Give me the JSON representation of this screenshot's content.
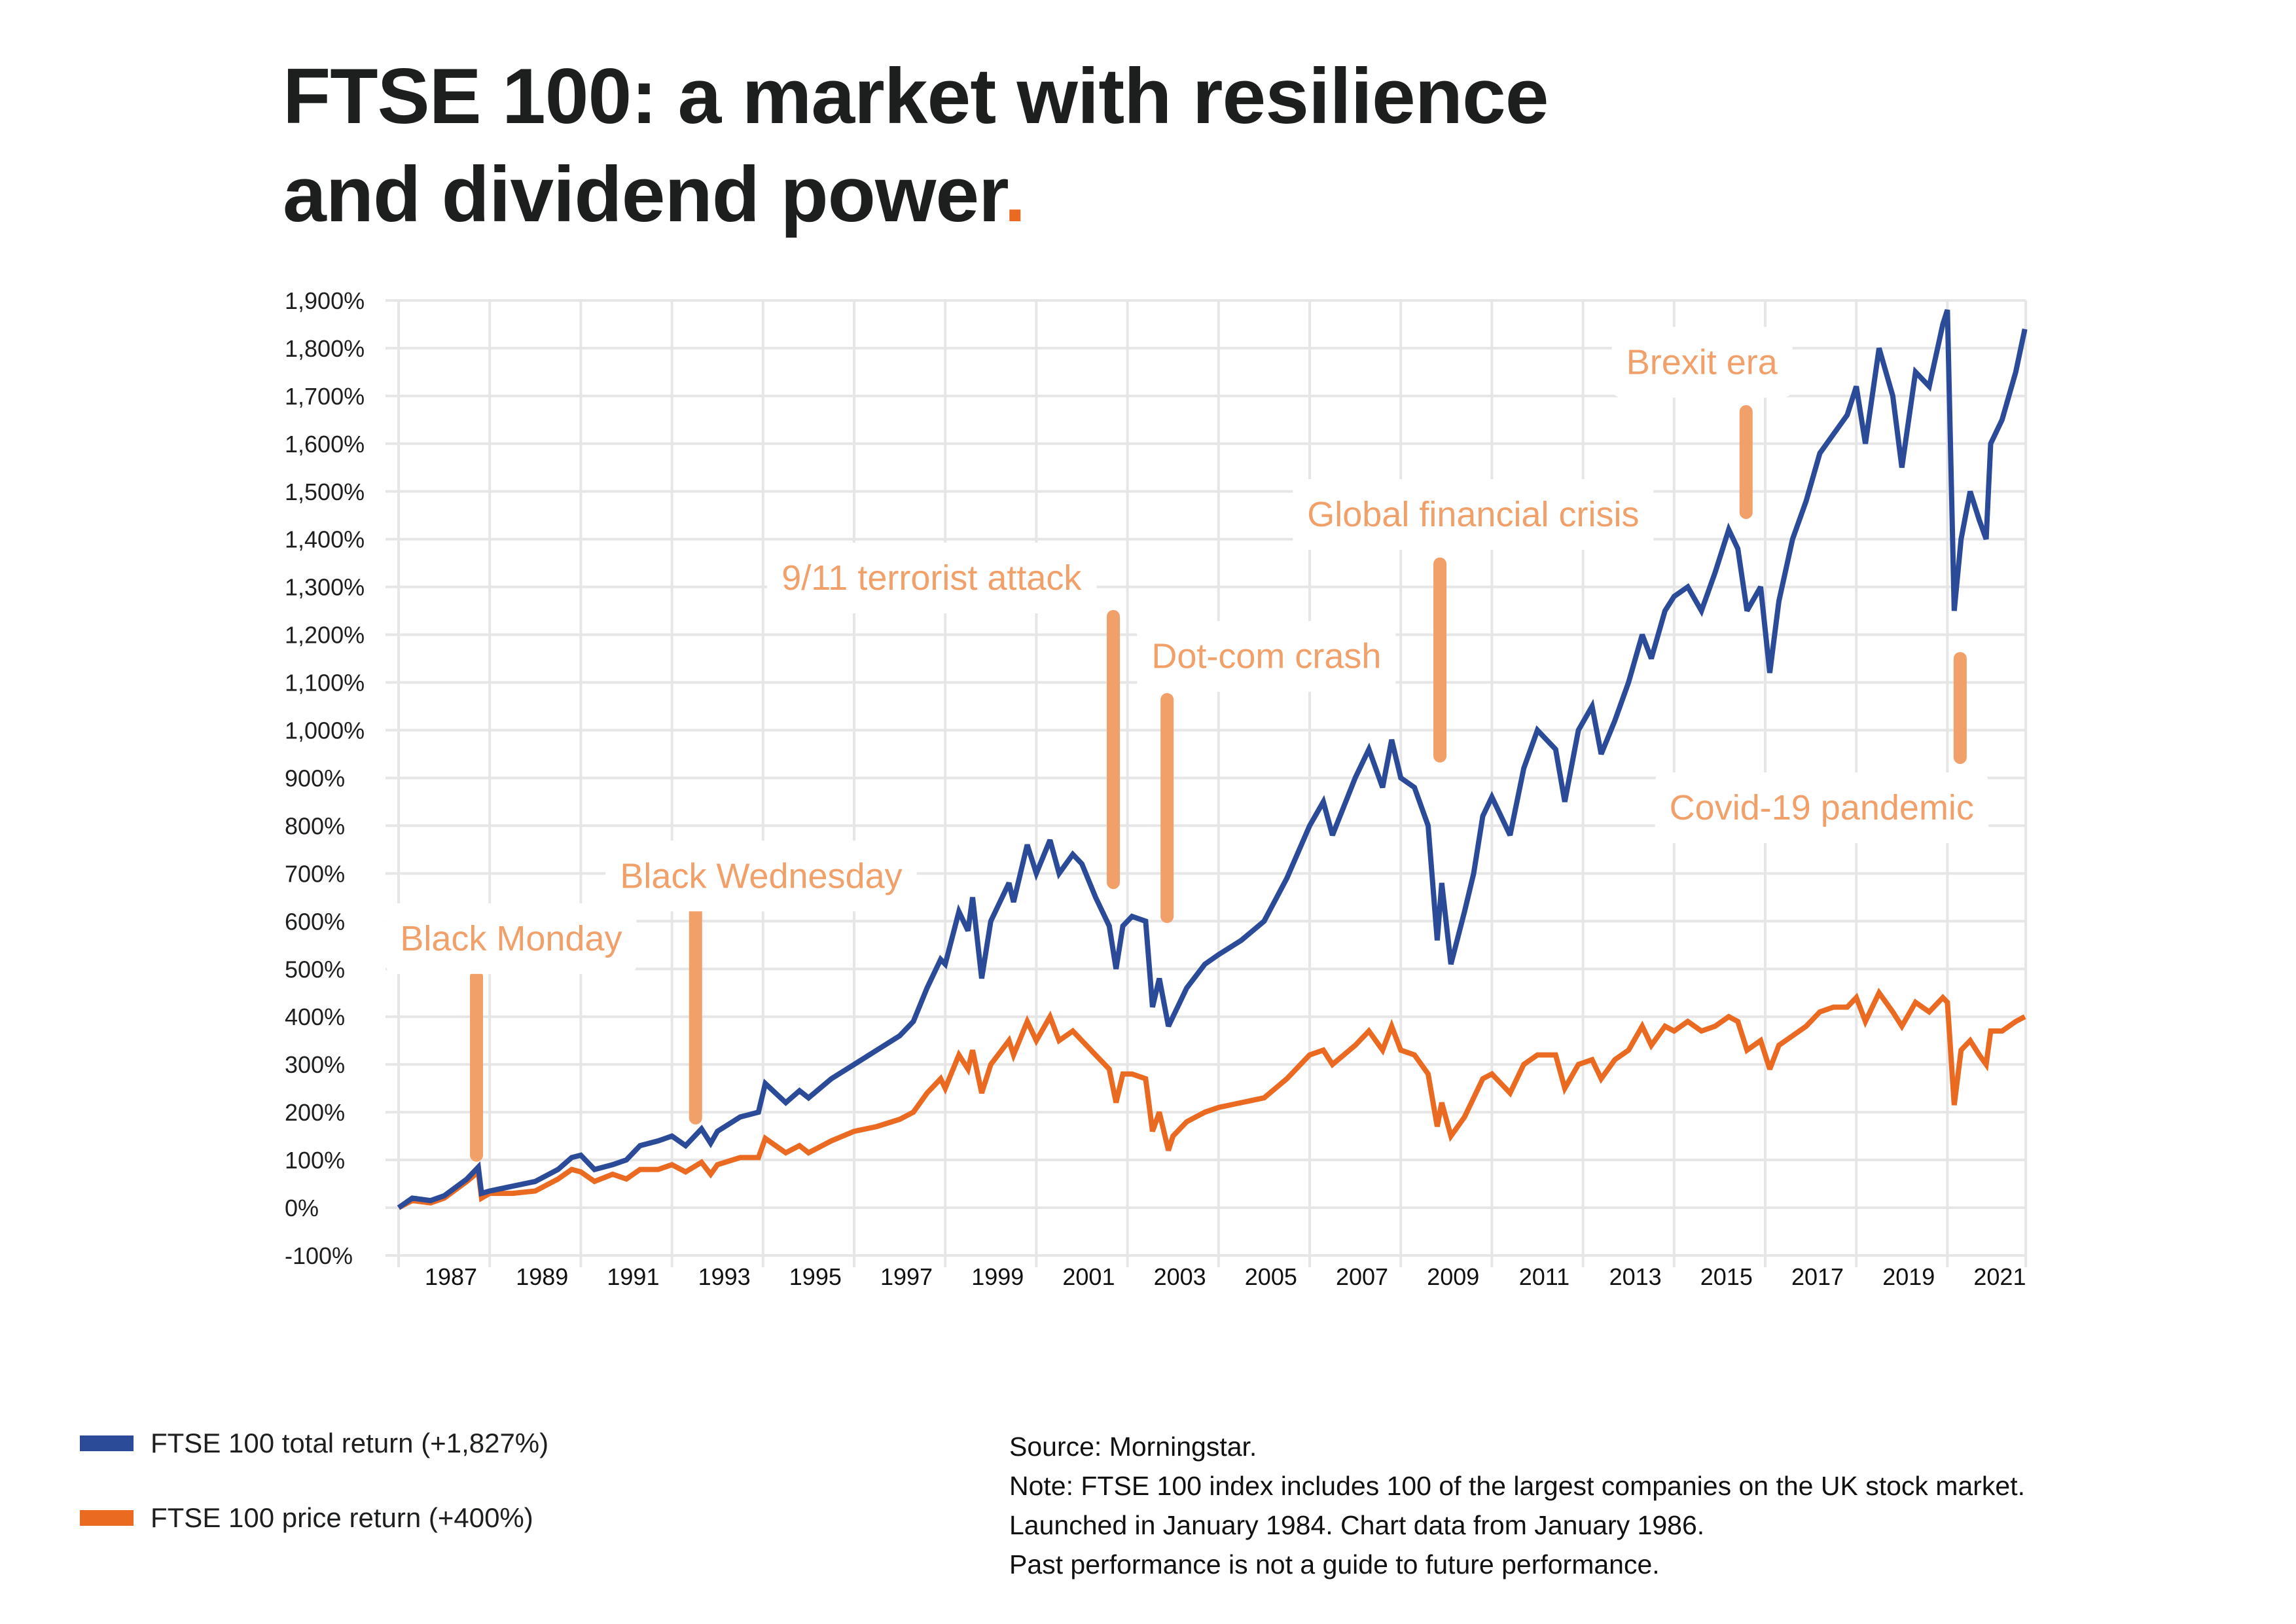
{
  "header": {
    "title_line1": "FTSE 100: a market with resilience",
    "title_line2": "and dividend power",
    "title_dot": ".",
    "accent_color": "#ea6a21"
  },
  "legend": [
    {
      "label": "FTSE 100 total return (+1,827%)",
      "color": "#2b4a98"
    },
    {
      "label": "FTSE 100 price return (+400%)",
      "color": "#ea6a21"
    }
  ],
  "notes": {
    "source": "Source: Morningstar.",
    "note_lines": [
      "Note: FTSE 100 index includes 100 of the largest companies on the UK stock market.",
      "Launched in January 1984. Chart data from January 1986.",
      "Past performance is not a guide to future performance."
    ]
  },
  "chart_data": {
    "type": "line",
    "title": "FTSE 100: a market with resilience and dividend power.",
    "xlabel": "",
    "ylabel": "",
    "xlim": [
      1986.0,
      2021.72
    ],
    "ylim": [
      -100,
      1900
    ],
    "grid": true,
    "legend_position": "bottom-left",
    "x_ticks": [
      "1987",
      "1989",
      "1991",
      "1993",
      "1995",
      "1997",
      "1999",
      "2001",
      "2003",
      "2005",
      "2007",
      "2009",
      "2011",
      "2013",
      "2015",
      "2017",
      "2019",
      "2021"
    ],
    "x_gridlines": [
      1986,
      1988,
      1990,
      1992,
      1994,
      1996,
      1998,
      2000,
      2002,
      2004,
      2006,
      2008,
      2010,
      2012,
      2014,
      2016,
      2018,
      2020
    ],
    "y_ticks": [
      {
        "value": 1900,
        "label": "1,900%"
      },
      {
        "value": 1800,
        "label": "1,800%"
      },
      {
        "value": 1700,
        "label": "1,700%"
      },
      {
        "value": 1600,
        "label": "1,600%"
      },
      {
        "value": 1500,
        "label": "1,500%"
      },
      {
        "value": 1400,
        "label": "1,400%"
      },
      {
        "value": 1300,
        "label": "1,300%"
      },
      {
        "value": 1200,
        "label": "1,200%"
      },
      {
        "value": 1100,
        "label": "1,100%"
      },
      {
        "value": 1000,
        "label": "1,000%"
      },
      {
        "value": 900,
        "label": "900%"
      },
      {
        "value": 800,
        "label": "800%"
      },
      {
        "value": 700,
        "label": "700%"
      },
      {
        "value": 600,
        "label": "600%"
      },
      {
        "value": 500,
        "label": "500%"
      },
      {
        "value": 400,
        "label": "400%"
      },
      {
        "value": 300,
        "label": "300%"
      },
      {
        "value": 200,
        "label": "200%"
      },
      {
        "value": 100,
        "label": "100%"
      },
      {
        "value": 0,
        "label": "0%"
      },
      {
        "value": -100,
        "label": "-100%"
      }
    ],
    "series": [
      {
        "name": "FTSE 100 total return (+1,827%)",
        "color": "#2b4a98",
        "x": [
          1986.0,
          1986.3,
          1986.7,
          1987.0,
          1987.5,
          1987.75,
          1987.82,
          1988.0,
          1988.5,
          1989.0,
          1989.5,
          1989.8,
          1990.0,
          1990.3,
          1990.7,
          1991.0,
          1991.3,
          1991.7,
          1992.0,
          1992.3,
          1992.65,
          1992.85,
          1993.0,
          1993.5,
          1993.9,
          1994.05,
          1994.5,
          1994.8,
          1995.0,
          1995.5,
          1996.0,
          1996.5,
          1997.0,
          1997.3,
          1997.6,
          1997.9,
          1998.0,
          1998.3,
          1998.5,
          1998.6,
          1998.8,
          1999.0,
          1999.4,
          1999.5,
          1999.8,
          2000.0,
          2000.3,
          2000.5,
          2000.8,
          2001.0,
          2001.3,
          2001.6,
          2001.75,
          2001.9,
          2002.1,
          2002.4,
          2002.55,
          2002.7,
          2002.9,
          2003.0,
          2003.3,
          2003.7,
          2004.0,
          2004.5,
          2005.0,
          2005.5,
          2006.0,
          2006.3,
          2006.5,
          2007.0,
          2007.3,
          2007.6,
          2007.8,
          2008.0,
          2008.3,
          2008.6,
          2008.8,
          2008.9,
          2009.1,
          2009.4,
          2009.6,
          2009.8,
          2010.0,
          2010.4,
          2010.7,
          2011.0,
          2011.4,
          2011.6,
          2011.9,
          2012.2,
          2012.4,
          2012.7,
          2013.0,
          2013.3,
          2013.5,
          2013.8,
          2014.0,
          2014.3,
          2014.6,
          2014.9,
          2015.2,
          2015.4,
          2015.6,
          2015.9,
          2016.1,
          2016.3,
          2016.6,
          2016.9,
          2017.2,
          2017.5,
          2017.8,
          2018.0,
          2018.2,
          2018.5,
          2018.8,
          2019.0,
          2019.3,
          2019.6,
          2019.9,
          2020.0,
          2020.15,
          2020.3,
          2020.5,
          2020.7,
          2020.85,
          2020.95,
          2021.2,
          2021.5,
          2021.7
        ],
        "values": [
          0,
          20,
          15,
          25,
          60,
          85,
          30,
          35,
          45,
          55,
          80,
          105,
          110,
          80,
          90,
          100,
          130,
          140,
          150,
          130,
          165,
          135,
          160,
          190,
          200,
          260,
          220,
          245,
          230,
          270,
          300,
          330,
          360,
          390,
          460,
          520,
          510,
          620,
          580,
          650,
          480,
          600,
          680,
          640,
          760,
          700,
          770,
          700,
          740,
          720,
          650,
          590,
          500,
          590,
          610,
          600,
          420,
          480,
          380,
          400,
          460,
          510,
          530,
          560,
          600,
          690,
          800,
          850,
          780,
          900,
          960,
          880,
          980,
          900,
          880,
          800,
          560,
          680,
          510,
          620,
          700,
          820,
          860,
          780,
          920,
          1000,
          960,
          850,
          1000,
          1050,
          950,
          1020,
          1100,
          1200,
          1150,
          1250,
          1280,
          1300,
          1250,
          1330,
          1420,
          1380,
          1250,
          1300,
          1120,
          1270,
          1400,
          1480,
          1580,
          1620,
          1660,
          1720,
          1600,
          1800,
          1700,
          1550,
          1750,
          1720,
          1850,
          1880,
          1250,
          1400,
          1500,
          1440,
          1400,
          1600,
          1650,
          1750,
          1840
        ]
      },
      {
        "name": "FTSE 100 price return (+400%)",
        "color": "#ea6a21",
        "x": [
          1986.0,
          1986.3,
          1986.7,
          1987.0,
          1987.5,
          1987.75,
          1987.82,
          1988.0,
          1988.5,
          1989.0,
          1989.5,
          1989.8,
          1990.0,
          1990.3,
          1990.7,
          1991.0,
          1991.3,
          1991.7,
          1992.0,
          1992.3,
          1992.65,
          1992.85,
          1993.0,
          1993.5,
          1993.9,
          1994.05,
          1994.5,
          1994.8,
          1995.0,
          1995.5,
          1996.0,
          1996.5,
          1997.0,
          1997.3,
          1997.6,
          1997.9,
          1998.0,
          1998.3,
          1998.5,
          1998.6,
          1998.8,
          1999.0,
          1999.4,
          1999.5,
          1999.8,
          2000.0,
          2000.3,
          2000.5,
          2000.8,
          2001.0,
          2001.3,
          2001.6,
          2001.75,
          2001.9,
          2002.1,
          2002.4,
          2002.55,
          2002.7,
          2002.9,
          2003.0,
          2003.3,
          2003.7,
          2004.0,
          2004.5,
          2005.0,
          2005.5,
          2006.0,
          2006.3,
          2006.5,
          2007.0,
          2007.3,
          2007.6,
          2007.8,
          2008.0,
          2008.3,
          2008.6,
          2008.8,
          2008.9,
          2009.1,
          2009.4,
          2009.6,
          2009.8,
          2010.0,
          2010.4,
          2010.7,
          2011.0,
          2011.4,
          2011.6,
          2011.9,
          2012.2,
          2012.4,
          2012.7,
          2013.0,
          2013.3,
          2013.5,
          2013.8,
          2014.0,
          2014.3,
          2014.6,
          2014.9,
          2015.2,
          2015.4,
          2015.6,
          2015.9,
          2016.1,
          2016.3,
          2016.6,
          2016.9,
          2017.2,
          2017.5,
          2017.8,
          2018.0,
          2018.2,
          2018.5,
          2018.8,
          2019.0,
          2019.3,
          2019.6,
          2019.9,
          2020.0,
          2020.15,
          2020.3,
          2020.5,
          2020.7,
          2020.85,
          2020.95,
          2021.2,
          2021.5,
          2021.7
        ],
        "values": [
          0,
          15,
          10,
          20,
          55,
          75,
          20,
          30,
          30,
          35,
          60,
          80,
          75,
          55,
          70,
          60,
          80,
          80,
          90,
          75,
          95,
          70,
          90,
          105,
          105,
          145,
          115,
          130,
          115,
          140,
          160,
          170,
          185,
          200,
          240,
          270,
          250,
          320,
          290,
          330,
          240,
          300,
          350,
          320,
          390,
          350,
          400,
          350,
          370,
          350,
          320,
          290,
          220,
          280,
          280,
          270,
          160,
          200,
          120,
          150,
          180,
          200,
          210,
          220,
          230,
          270,
          320,
          330,
          300,
          340,
          370,
          330,
          380,
          330,
          320,
          280,
          170,
          220,
          150,
          190,
          230,
          270,
          280,
          240,
          300,
          320,
          320,
          250,
          300,
          310,
          270,
          310,
          330,
          380,
          340,
          380,
          370,
          390,
          370,
          380,
          400,
          390,
          330,
          350,
          290,
          340,
          360,
          380,
          410,
          420,
          420,
          440,
          390,
          450,
          410,
          380,
          430,
          410,
          440,
          430,
          215,
          330,
          350,
          320,
          300,
          370,
          370,
          390,
          400
        ]
      }
    ],
    "annotations": [
      {
        "label": "Black Monday",
        "year": 1987.71,
        "bar_from": 110,
        "bar_to": 484,
        "label_x": 1988.47,
        "label_y": 565
      },
      {
        "label": "Black Wednesday",
        "year": 1992.52,
        "bar_from": 188,
        "bar_to": 620,
        "label_x": 1993.96,
        "label_y": 696
      },
      {
        "label": "9/11 terrorist attack",
        "year": 2001.69,
        "bar_from": 681,
        "bar_to": 1238,
        "label_x": 1997.7,
        "label_y": 1320
      },
      {
        "label": "Dot-com crash",
        "year": 2002.87,
        "bar_from": 610,
        "bar_to": 1064,
        "label_x": 2005.05,
        "label_y": 1156
      },
      {
        "label": "Global financial crisis",
        "year": 2008.86,
        "bar_from": 946,
        "bar_to": 1348,
        "label_x": 2009.59,
        "label_y": 1453
      },
      {
        "label": "Brexit era",
        "year": 2015.58,
        "bar_from": 1456,
        "bar_to": 1667,
        "label_x": 2014.61,
        "label_y": 1772
      },
      {
        "label": "Covid-19 pandemic",
        "year": 2020.28,
        "bar_from": 943,
        "bar_to": 1150,
        "label_x": 2017.24,
        "label_y": 839
      }
    ],
    "annotation_color": "#f2a06a"
  }
}
